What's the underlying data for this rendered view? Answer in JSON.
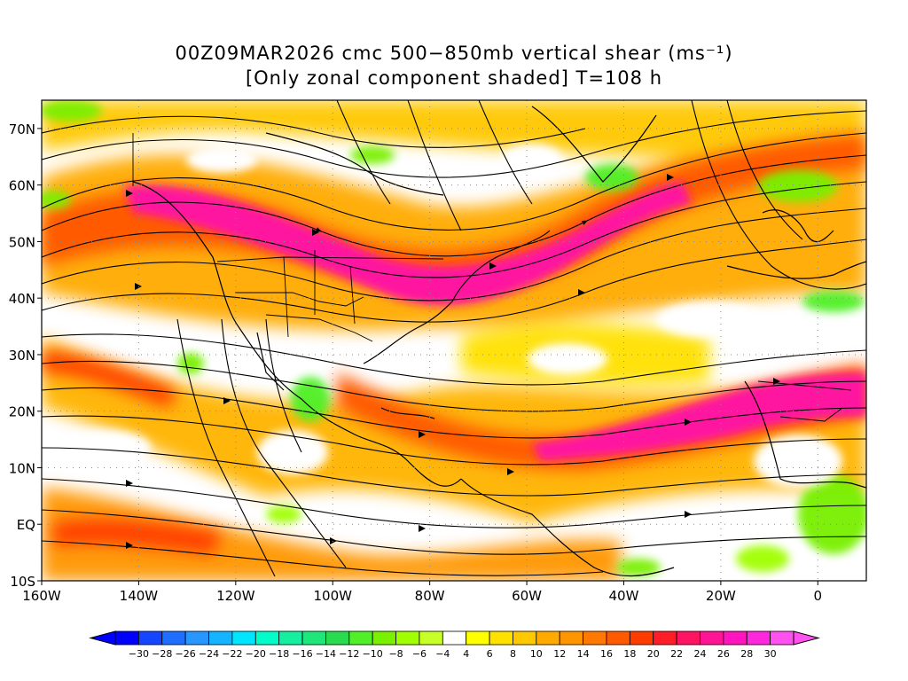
{
  "title": {
    "line1": "00Z09MAR2026 cmc 500−850mb vertical shear (ms⁻¹)",
    "line2": "[Only zonal component shaded] T=108 h"
  },
  "map": {
    "lat_labels": [
      "70N",
      "60N",
      "50N",
      "40N",
      "30N",
      "20N",
      "10N",
      "EQ",
      "10S"
    ],
    "lon_labels": [
      "160W",
      "140W",
      "120W",
      "100W",
      "80W",
      "60W",
      "40W",
      "20W",
      "0"
    ],
    "lat_values": [
      70,
      60,
      50,
      40,
      30,
      20,
      10,
      0,
      -10
    ],
    "lon_values": [
      -160,
      -140,
      -120,
      -100,
      -80,
      -60,
      -40,
      -20,
      0
    ],
    "extent": {
      "lon_min": -160,
      "lon_max": 10,
      "lat_min": -10,
      "lat_max": 75
    },
    "shear_bands": [
      {
        "name": "midlatitude jet",
        "color": "#ff1aa0"
      },
      {
        "name": "subtropical jet",
        "color": "#ff1aa0"
      }
    ]
  },
  "colorbar": {
    "labels": [
      "−30",
      "−28",
      "−26",
      "−24",
      "−22",
      "−20",
      "−18",
      "−16",
      "−14",
      "−12",
      "−10",
      "−8",
      "−6",
      "−4",
      "4",
      "6",
      "8",
      "10",
      "12",
      "14",
      "16",
      "18",
      "20",
      "22",
      "24",
      "26",
      "28",
      "30"
    ],
    "colors": [
      "#0000ff",
      "#1446ff",
      "#1e6eff",
      "#2896ff",
      "#14b4ff",
      "#00e6ff",
      "#00ffc8",
      "#14f0a0",
      "#1ee678",
      "#28dc50",
      "#50f028",
      "#78f000",
      "#a0ff00",
      "#c8ff28",
      "#ffffff",
      "#ffff00",
      "#ffe100",
      "#ffc800",
      "#ffaa00",
      "#ff9600",
      "#ff7800",
      "#ff5a00",
      "#ff3c00",
      "#ff1e28",
      "#ff1464",
      "#ff1496",
      "#ff14be",
      "#ff28dc",
      "#ff50f0"
    ]
  }
}
